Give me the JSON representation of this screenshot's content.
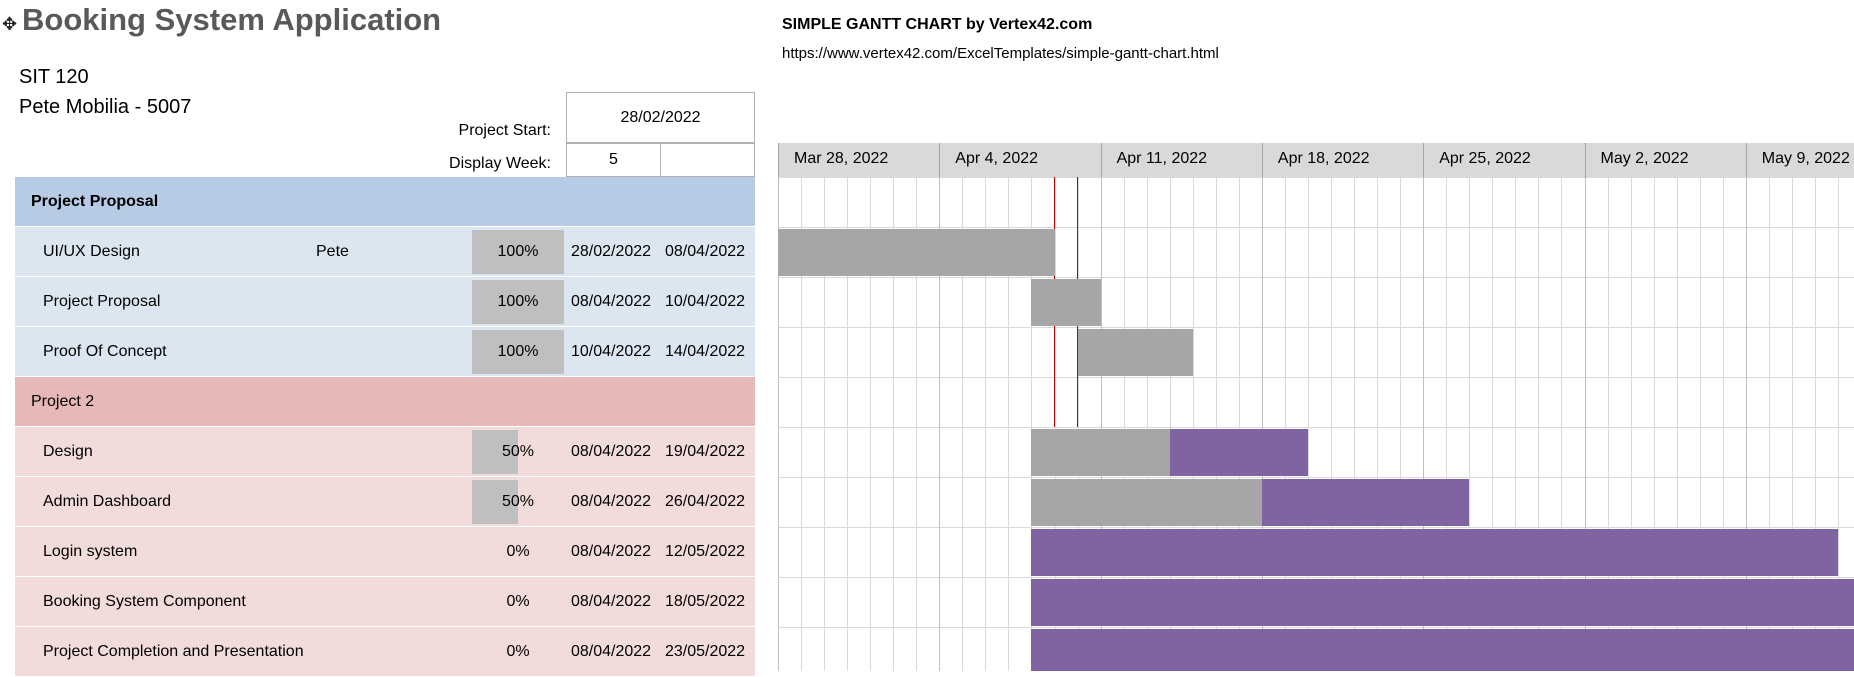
{
  "app": {
    "title": "Booking System Application",
    "course": "SIT 120",
    "author": "Pete Mobilia - 5007"
  },
  "template_credit": {
    "title": "SIMPLE GANTT CHART by Vertex42.com",
    "url": "https://www.vertex42.com/ExcelTemplates/simple-gantt-chart.html"
  },
  "settings": {
    "project_start_label": "Project Start:",
    "project_start_value": "28/02/2022",
    "display_week_label": "Display Week:",
    "display_week_value": "5"
  },
  "weeks": [
    "Mar 28, 2022",
    "Apr 4, 2022",
    "Apr 11, 2022",
    "Apr 18, 2022",
    "Apr 25, 2022",
    "May 2, 2022",
    "May 9, 2022"
  ],
  "rows": [
    {
      "kind": "phase",
      "theme": "phase1",
      "name": "Project Proposal"
    },
    {
      "kind": "task",
      "theme": "task1",
      "name": "UI/UX Design",
      "assignee": "Pete",
      "progress": "100%",
      "progress_fraction": 1.0,
      "start": "28/02/2022",
      "end": "08/04/2022"
    },
    {
      "kind": "task",
      "theme": "task1",
      "name": "Project Proposal",
      "assignee": "",
      "progress": "100%",
      "progress_fraction": 1.0,
      "start": "08/04/2022",
      "end": "10/04/2022"
    },
    {
      "kind": "task",
      "theme": "task1",
      "name": "Proof Of Concept",
      "assignee": "",
      "progress": "100%",
      "progress_fraction": 1.0,
      "start": "10/04/2022",
      "end": "14/04/2022"
    },
    {
      "kind": "phase",
      "theme": "phase2",
      "name": "Project 2"
    },
    {
      "kind": "task",
      "theme": "task2",
      "name": "Design",
      "assignee": "",
      "progress": "50%",
      "progress_fraction": 0.5,
      "start": "08/04/2022",
      "end": "19/04/2022"
    },
    {
      "kind": "task",
      "theme": "task2",
      "name": "Admin Dashboard",
      "assignee": "",
      "progress": "50%",
      "progress_fraction": 0.5,
      "start": "08/04/2022",
      "end": "26/04/2022"
    },
    {
      "kind": "task",
      "theme": "task2",
      "name": "Login system",
      "assignee": "",
      "progress": "0%",
      "progress_fraction": 0.0,
      "start": "08/04/2022",
      "end": "12/05/2022"
    },
    {
      "kind": "task",
      "theme": "task2",
      "name": "Booking System Component",
      "assignee": "",
      "progress": "0%",
      "progress_fraction": 0.0,
      "start": "08/04/2022",
      "end": "18/05/2022"
    },
    {
      "kind": "task",
      "theme": "task2",
      "name": "Project Completion and Presentation",
      "assignee": "",
      "progress": "0%",
      "progress_fraction": 0.0,
      "start": "08/04/2022",
      "end": "23/05/2022"
    }
  ],
  "colors": {
    "done": "#a6a6a6",
    "todo": "#8064a2",
    "today_line": "#c00000",
    "phase1": "#b7cce4",
    "task1": "#dce6f1",
    "phase2": "#e6b8b7",
    "task2": "#f2dcdb"
  }
}
